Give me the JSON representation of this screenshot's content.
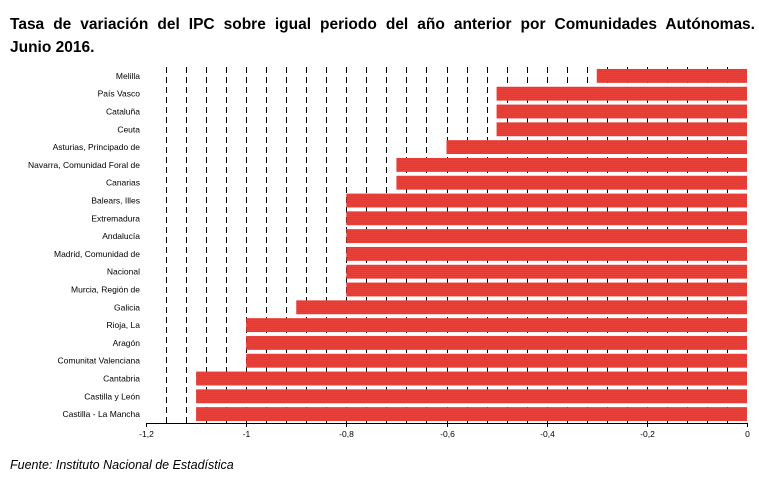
{
  "title_lines": [
    "Tasa de variación del IPC sobre igual periodo del año anterior por Comunidades Autónomas.",
    "Junio 2016."
  ],
  "source": "Fuente: Instituto Nacional de Estadística",
  "colors": {
    "bar": "#e8413a",
    "bar_stripe": "#c9302a",
    "gridline": "#000000"
  },
  "chart_data": {
    "type": "bar",
    "orientation": "horizontal",
    "title": "Tasa de variación del IPC sobre igual periodo del año anterior por Comunidades Autónomas. Junio 2016.",
    "categories": [
      "Melilla",
      "País Vasco",
      "Cataluña",
      "Ceuta",
      "Asturias, Principado de",
      "Navarra, Comunidad Foral de",
      "Canarias",
      "Balears, Illes",
      "Extremadura",
      "Andalucía",
      "Madrid, Comunidad de",
      "Nacional",
      "Murcia, Región de",
      "Galicia",
      "Rioja, La",
      "Aragón",
      "Comunitat Valenciana",
      "Cantabria",
      "Castilla y León",
      "Castilla - La Mancha"
    ],
    "values": [
      -0.3,
      -0.5,
      -0.5,
      -0.5,
      -0.6,
      -0.7,
      -0.7,
      -0.8,
      -0.8,
      -0.8,
      -0.8,
      -0.8,
      -0.8,
      -0.9,
      -1.0,
      -1.0,
      -1.0,
      -1.1,
      -1.1,
      -1.1
    ],
    "xlim": [
      -1.2,
      0
    ],
    "xticks": [
      -1.2,
      -1,
      -0.8,
      -0.6,
      -0.4,
      -0.2,
      0
    ],
    "xtick_labels": [
      "-1,2",
      "-1",
      "-0,8",
      "-0,6",
      "-0,4",
      "-0,2",
      "0"
    ],
    "gridlines": {
      "style": "dashed",
      "step": 0.04
    },
    "xlabel": "",
    "ylabel": ""
  }
}
